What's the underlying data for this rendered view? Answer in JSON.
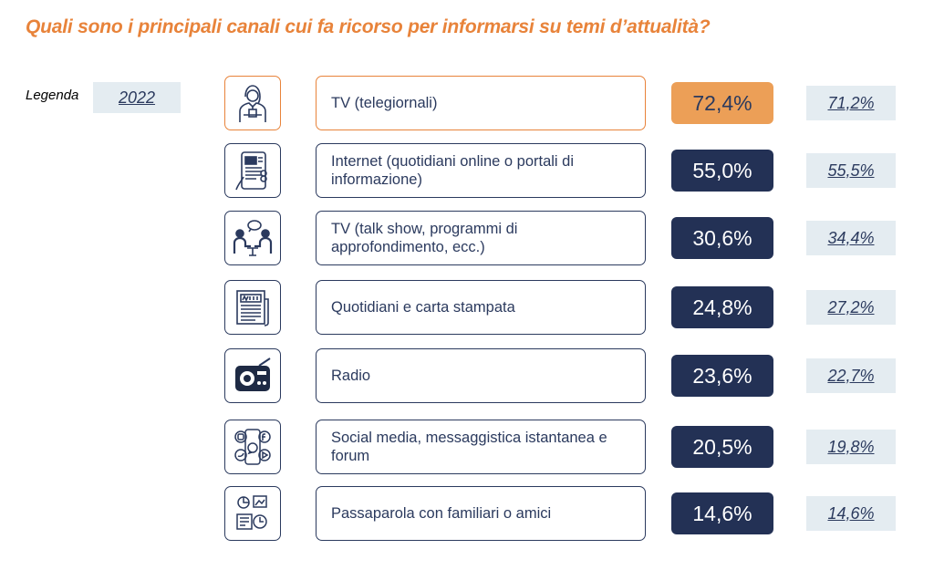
{
  "title": "Quali sono i principali canali cui fa ricorso per informarsi su temi d’attualità?",
  "legend": {
    "label": "Legenda",
    "year": "2022"
  },
  "colors": {
    "accent": "#E8833A",
    "navy": "#233155",
    "light": "#E4ECF1"
  },
  "chart_data": {
    "type": "table",
    "title": "Quali sono i principali canali cui fa ricorso per informarsi su temi d’attualità?",
    "rows": [
      {
        "icon": "anchor-person-icon",
        "label": "TV (telegiornali)",
        "value": "72,4%",
        "prev": "71,2%",
        "highlight": true
      },
      {
        "icon": "tablet-news-icon",
        "label": "Internet (quotidiani online o portali di informazione)",
        "value": "55,0%",
        "prev": "55,5%",
        "highlight": false
      },
      {
        "icon": "talk-show-icon",
        "label": "TV (talk show, programmi di approfondimento, ecc.)",
        "value": "30,6%",
        "prev": "34,4%",
        "highlight": false
      },
      {
        "icon": "newspaper-icon",
        "label": "Quotidiani e carta stampata",
        "value": "24,8%",
        "prev": "27,2%",
        "highlight": false
      },
      {
        "icon": "radio-icon",
        "label": "Radio",
        "value": "23,6%",
        "prev": "22,7%",
        "highlight": false
      },
      {
        "icon": "social-media-icon",
        "label": "Social media, messaggistica istantanea e forum",
        "value": "20,5%",
        "prev": "19,8%",
        "highlight": false
      },
      {
        "icon": "word-of-mouth-icon",
        "label": "Passaparola con familiari o amici",
        "value": "14,6%",
        "prev": "14,6%",
        "highlight": false
      }
    ]
  }
}
